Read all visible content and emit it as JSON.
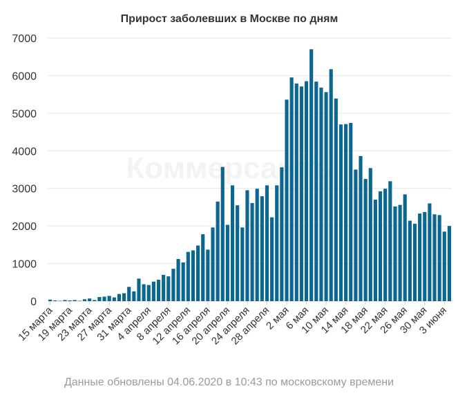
{
  "watermark": "Коммерсантъ",
  "footer": "Данные обновлены 04.06.2020 в 10:43 по московскому времени",
  "colors": {
    "bar": "#0b6690",
    "grid": "#e6e6e6",
    "axis": "#cfcfcf"
  },
  "chart_data": {
    "type": "bar",
    "title": "Прирост заболевших в Москве по дням",
    "xlabel": "",
    "ylabel": "",
    "ylim": [
      0,
      7000
    ],
    "yticks": [
      0,
      1000,
      2000,
      3000,
      4000,
      5000,
      6000,
      7000
    ],
    "grid": true,
    "categories": [
      "15 марта",
      "16 марта",
      "17 марта",
      "18 марта",
      "19 марта",
      "20 марта",
      "21 марта",
      "22 марта",
      "23 марта",
      "24 марта",
      "25 марта",
      "26 марта",
      "27 марта",
      "28 марта",
      "29 марта",
      "30 марта",
      "31 марта",
      "1 апреля",
      "2 апреля",
      "3 апреля",
      "4 апреля",
      "5 апреля",
      "6 апреля",
      "7 апреля",
      "8 апреля",
      "9 апреля",
      "10 апреля",
      "11 апреля",
      "12 апреля",
      "13 апреля",
      "14 апреля",
      "15 апреля",
      "16 апреля",
      "17 апреля",
      "18 апреля",
      "19 апреля",
      "20 апреля",
      "21 апреля",
      "22 апреля",
      "23 апреля",
      "24 апреля",
      "25 апреля",
      "26 апреля",
      "27 апреля",
      "28 апреля",
      "29 апреля",
      "30 апреля",
      "1 мая",
      "2 мая",
      "3 мая",
      "4 мая",
      "5 мая",
      "6 мая",
      "7 мая",
      "8 мая",
      "9 мая",
      "10 мая",
      "11 мая",
      "12 мая",
      "13 мая",
      "14 мая",
      "15 мая",
      "16 мая",
      "17 мая",
      "18 мая",
      "19 мая",
      "20 мая",
      "21 мая",
      "22 мая",
      "23 мая",
      "24 мая",
      "25 мая",
      "26 мая",
      "27 мая",
      "28 мая",
      "29 мая",
      "30 мая",
      "31 мая",
      "1 июня",
      "2 июня",
      "3 июня",
      "4 июня"
    ],
    "tick_labels": [
      "15 марта",
      "19 марта",
      "23 марта",
      "27 марта",
      "31 марта",
      "4 апреля",
      "8 апреля",
      "12 апреля",
      "16 апреля",
      "20 апреля",
      "24 апреля",
      "28 апреля",
      "2 мая",
      "6 мая",
      "10 мая",
      "14 мая",
      "18 мая",
      "22 мая",
      "26 мая",
      "30 мая",
      "3 июня"
    ],
    "values": [
      40,
      20,
      10,
      30,
      20,
      30,
      10,
      50,
      70,
      30,
      110,
      120,
      140,
      100,
      190,
      210,
      380,
      260,
      600,
      450,
      430,
      520,
      570,
      700,
      660,
      860,
      1120,
      1030,
      1310,
      1350,
      1480,
      1780,
      1370,
      1960,
      2650,
      3570,
      2030,
      3080,
      2550,
      1960,
      2950,
      2610,
      2990,
      2790,
      3080,
      2230,
      3080,
      3560,
      5360,
      5950,
      5790,
      5710,
      5850,
      6700,
      5840,
      5680,
      5560,
      6170,
      5390,
      4700,
      4710,
      4740,
      3500,
      3860,
      3250,
      3540,
      2700,
      2920,
      2990,
      3190,
      2520,
      2560,
      2840,
      2140,
      2060,
      2330,
      2370,
      2600,
      2310,
      2290,
      1850,
      2000
    ]
  }
}
